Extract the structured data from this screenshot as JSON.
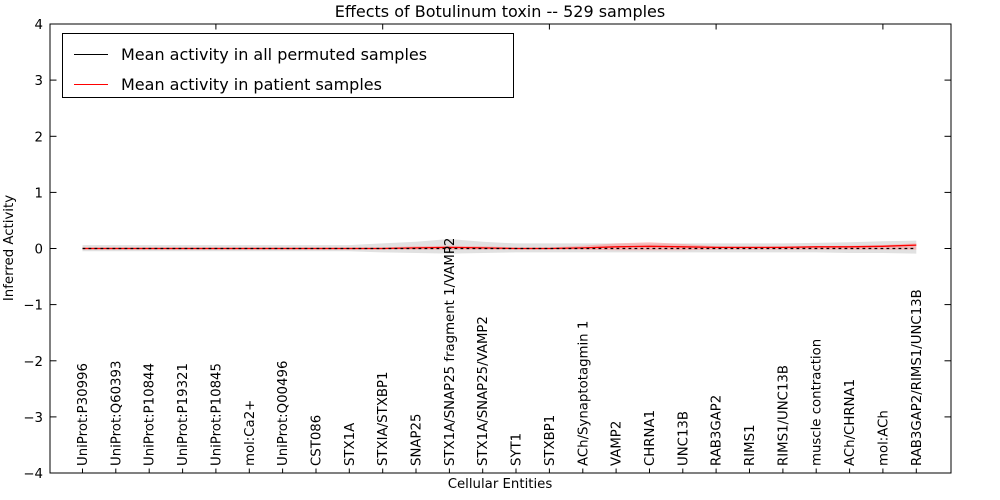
{
  "figure": {
    "title": "Effects of Botulinum toxin -- 529 samples",
    "xlabel": "Cellular Entities",
    "ylabel": "Inferred Activity",
    "background": "#ffffff",
    "axis_color": "#000000",
    "legend": [
      {
        "label": "Mean activity in all permuted samples",
        "color": "#000000"
      },
      {
        "label": "Mean activity in patient samples",
        "color": "#ff0000"
      }
    ]
  },
  "chart_data": {
    "type": "line",
    "title": "Effects of Botulinum toxin -- 529 samples",
    "xlabel": "Cellular Entities",
    "ylabel": "Inferred Activity",
    "ylim": [
      -4,
      4
    ],
    "yticks": [
      -4,
      -3,
      -2,
      -1,
      0,
      1,
      2,
      3,
      4
    ],
    "x_major_ticks_top": [
      5,
      10,
      15,
      20,
      25
    ],
    "grid": false,
    "legend_position": "upper left",
    "categories": [
      "UniProt:P30996",
      "UniProt:Q60393",
      "UniProt:P10844",
      "UniProt:P19321",
      "UniProt:P10845",
      "mol:Ca2+",
      "UniProt:Q00496",
      "CST086",
      "STX1A",
      "STXIA/STXBP1",
      "SNAP25",
      "STX1A/SNAP25 fragment 1/VAMP2",
      "STX1A/SNAP25/VAMP2",
      "SYT1",
      "STXBP1",
      "ACh/Synaptotagmin 1",
      "VAMP2",
      "CHRNA1",
      "UNC13B",
      "RAB3GAP2",
      "RIMS1",
      "RIMS1/UNC13B",
      "muscle contraction",
      "ACh/CHRNA1",
      "mol:ACh",
      "RAB3GAP2/RIMS1/UNC13B"
    ],
    "series": [
      {
        "name": "Mean activity in all permuted samples",
        "color": "#000000",
        "plot_line_style": "dotted",
        "values": [
          0,
          0,
          0,
          0,
          0,
          0,
          0,
          0,
          0,
          0,
          0,
          0,
          0,
          0,
          0,
          0,
          0,
          0,
          0,
          0,
          0,
          0,
          0,
          0,
          0,
          0
        ],
        "band_color": "#c4c4c4",
        "band_upper": [
          0.06,
          0.06,
          0.06,
          0.06,
          0.06,
          0.06,
          0.06,
          0.06,
          0.06,
          0.09,
          0.12,
          0.17,
          0.12,
          0.09,
          0.09,
          0.09,
          0.09,
          0.09,
          0.09,
          0.09,
          0.09,
          0.09,
          0.1,
          0.11,
          0.13,
          0.14
        ],
        "band_lower": [
          -0.05,
          -0.05,
          -0.05,
          -0.05,
          -0.05,
          -0.05,
          -0.05,
          -0.05,
          -0.05,
          -0.07,
          -0.08,
          -0.09,
          -0.08,
          -0.07,
          -0.07,
          -0.07,
          -0.07,
          -0.07,
          -0.07,
          -0.07,
          -0.07,
          -0.07,
          -0.07,
          -0.08,
          -0.08,
          -0.09
        ]
      },
      {
        "name": "Mean activity in patient samples",
        "color": "#ff0000",
        "plot_line_style": "solid",
        "values": [
          0,
          0,
          0,
          0,
          0,
          0,
          0,
          0,
          0,
          0,
          0.01,
          0.02,
          0.01,
          0,
          0,
          0.01,
          0.03,
          0.04,
          0.03,
          0.02,
          0.02,
          0.02,
          0.03,
          0.03,
          0.04,
          0.06
        ],
        "band_color": "#ff9090",
        "band_upper": [
          0.02,
          0.02,
          0.02,
          0.02,
          0.02,
          0.02,
          0.02,
          0.02,
          0.02,
          0.02,
          0.04,
          0.05,
          0.04,
          0.02,
          0.02,
          0.05,
          0.09,
          0.11,
          0.08,
          0.04,
          0.03,
          0.04,
          0.04,
          0.05,
          0.06,
          0.09
        ],
        "band_lower": [
          -0.02,
          -0.02,
          -0.02,
          -0.02,
          -0.02,
          -0.02,
          -0.02,
          -0.02,
          -0.02,
          -0.02,
          -0.02,
          -0.02,
          -0.02,
          -0.02,
          -0.02,
          -0.02,
          -0.03,
          -0.03,
          -0.03,
          -0.02,
          -0.02,
          -0.02,
          -0.02,
          -0.02,
          -0.02,
          -0.02
        ]
      }
    ]
  }
}
